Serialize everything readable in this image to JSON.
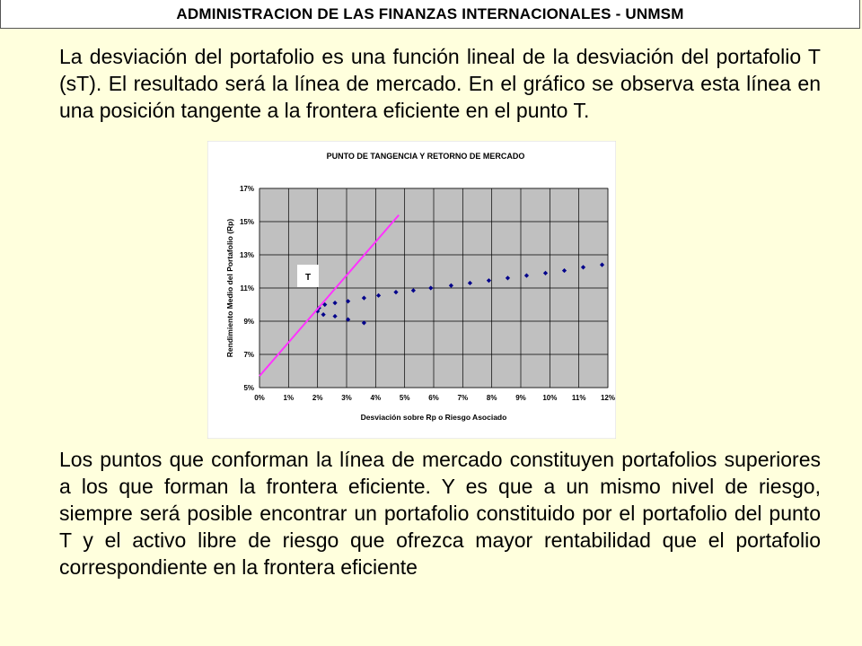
{
  "header": {
    "title": "ADMINISTRACION DE LAS FINANZAS INTERNACIONALES - UNMSM"
  },
  "paragraphs": {
    "p1": "La desviación del portafolio es una función lineal de la desviación del portafolio T (sT). El resultado será la línea de mercado. En el gráfico se observa esta línea en una posición tangente a la frontera eficiente en el punto T.",
    "p2": "Los puntos que conforman la línea de mercado constituyen portafolios superiores a los que forman la frontera eficiente. Y es que a un mismo nivel de riesgo, siempre será posible encontrar un portafolio constituido por el portafolio del punto T y el activo libre de riesgo que ofrezca mayor rentabilidad que el portafolio correspondiente en la frontera eficiente"
  },
  "colors": {
    "background": "#ffffdd",
    "plot_area": "#c0c0c0",
    "points": "#00008b",
    "market_line": "#ff33ff"
  },
  "chart_data": {
    "type": "scatter",
    "title": "PUNTO DE TANGENCIA  Y RETORNO DE MERCADO",
    "xlabel": "Desviación sobre Rp o Riesgo Asociado",
    "ylabel": "Rendimiento Medio del Portafolio (Rp)",
    "xlim": [
      0,
      12
    ],
    "ylim": [
      5,
      17
    ],
    "x_unit": "%",
    "y_unit": "%",
    "x_ticks": [
      "0%",
      "1%",
      "2%",
      "3%",
      "4%",
      "5%",
      "6%",
      "7%",
      "8%",
      "9%",
      "10%",
      "11%",
      "12%"
    ],
    "y_ticks": [
      "5%",
      "7%",
      "9%",
      "11%",
      "13%",
      "15%",
      "17%"
    ],
    "grid": true,
    "annotation": "T",
    "series": [
      {
        "kind": "scatter",
        "points": [
          [
            2.0,
            9.6
          ],
          [
            2.05,
            9.8
          ],
          [
            2.25,
            10.0
          ],
          [
            2.2,
            9.4
          ],
          [
            2.6,
            10.1
          ],
          [
            2.6,
            9.3
          ],
          [
            3.05,
            10.2
          ],
          [
            3.05,
            9.1
          ],
          [
            3.6,
            10.4
          ],
          [
            3.6,
            8.9
          ],
          [
            4.1,
            10.55
          ],
          [
            4.7,
            10.75
          ],
          [
            5.3,
            10.85
          ],
          [
            5.9,
            11.0
          ],
          [
            6.6,
            11.15
          ],
          [
            7.25,
            11.3
          ],
          [
            7.9,
            11.45
          ],
          [
            8.55,
            11.6
          ],
          [
            9.2,
            11.75
          ],
          [
            9.85,
            11.9
          ],
          [
            10.5,
            12.05
          ],
          [
            11.15,
            12.25
          ],
          [
            11.8,
            12.4
          ]
        ]
      },
      {
        "kind": "line",
        "points": [
          [
            0.0,
            5.7
          ],
          [
            4.8,
            15.4
          ]
        ]
      }
    ]
  }
}
